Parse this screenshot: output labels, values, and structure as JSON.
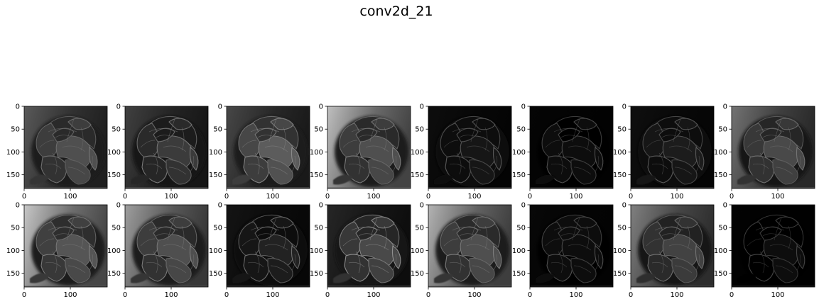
{
  "figure": {
    "title": "conv2d_21"
  },
  "grid": {
    "rows": 2,
    "cols": 8
  },
  "axes": {
    "xlim": [
      0,
      180
    ],
    "ylim": [
      180,
      0
    ],
    "xticks": [
      0,
      100
    ],
    "yticks": [
      0,
      50,
      100,
      150
    ],
    "xtick_labels": [
      "0",
      "100"
    ],
    "ytick_labels": [
      "0",
      "50",
      "100",
      "150"
    ]
  },
  "panels": [
    {
      "brightness": 0.3,
      "edge": 0.55,
      "bg": 0.35
    },
    {
      "brightness": 0.22,
      "edge": 0.6,
      "bg": 0.25
    },
    {
      "brightness": 0.35,
      "edge": 0.65,
      "bg": 0.28
    },
    {
      "brightness": 0.3,
      "edge": 0.6,
      "bg": 0.75
    },
    {
      "brightness": 0.08,
      "edge": 0.45,
      "bg": 0.05
    },
    {
      "brightness": 0.04,
      "edge": 0.4,
      "bg": 0.02
    },
    {
      "brightness": 0.1,
      "edge": 0.45,
      "bg": 0.06
    },
    {
      "brightness": 0.28,
      "edge": 0.55,
      "bg": 0.45
    },
    {
      "brightness": 0.32,
      "edge": 0.6,
      "bg": 0.78
    },
    {
      "brightness": 0.3,
      "edge": 0.6,
      "bg": 0.62
    },
    {
      "brightness": 0.12,
      "edge": 0.55,
      "bg": 0.08
    },
    {
      "brightness": 0.28,
      "edge": 0.7,
      "bg": 0.15
    },
    {
      "brightness": 0.3,
      "edge": 0.6,
      "bg": 0.7
    },
    {
      "brightness": 0.06,
      "edge": 0.4,
      "bg": 0.03
    },
    {
      "brightness": 0.25,
      "edge": 0.55,
      "bg": 0.5
    },
    {
      "brightness": 0.03,
      "edge": 0.35,
      "bg": 0.01
    }
  ]
}
